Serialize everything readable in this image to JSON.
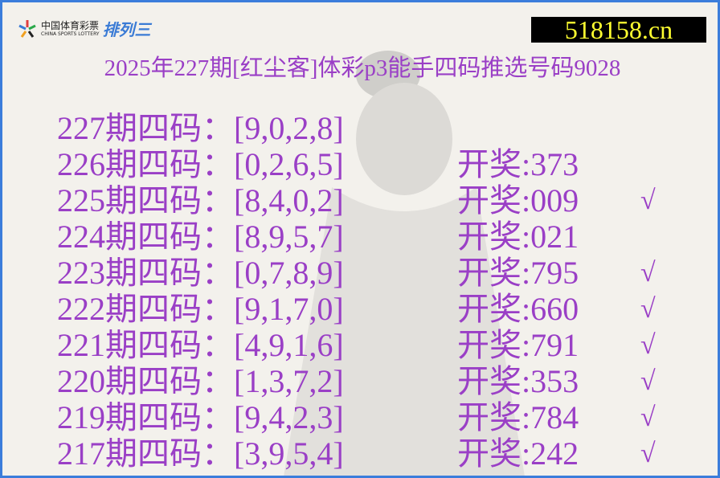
{
  "logo": {
    "cn": "中国体育彩票",
    "en": "CHINA SPORTS LOTTERY",
    "product": "排列三"
  },
  "site": "518158.cn",
  "title": "2025年227期[红尘客]体彩p3能手四码推选号码9028",
  "colors": {
    "text": "#9a3fc6",
    "border": "#3b7ddb",
    "site_text": "#ffff30",
    "site_bg": "#000000"
  },
  "rows": [
    {
      "pick": "227期四码：[9,0,2,8]",
      "result": "",
      "hit": ""
    },
    {
      "pick": "226期四码：[0,2,6,5]",
      "result": "开奖:373",
      "hit": ""
    },
    {
      "pick": "225期四码：[8,4,0,2]",
      "result": "开奖:009",
      "hit": "√"
    },
    {
      "pick": "224期四码：[8,9,5,7]",
      "result": "开奖:021",
      "hit": ""
    },
    {
      "pick": "223期四码：[0,7,8,9]",
      "result": "开奖:795",
      "hit": "√"
    },
    {
      "pick": "222期四码：[9,1,7,0]",
      "result": "开奖:660",
      "hit": "√"
    },
    {
      "pick": "221期四码：[4,9,1,6]",
      "result": "开奖:791",
      "hit": "√"
    },
    {
      "pick": "220期四码：[1,3,7,2]",
      "result": "开奖:353",
      "hit": "√"
    },
    {
      "pick": "219期四码：[9,4,2,3]",
      "result": "开奖:784",
      "hit": "√"
    },
    {
      "pick": "217期四码：[3,9,5,4]",
      "result": "开奖:242",
      "hit": "√"
    }
  ]
}
